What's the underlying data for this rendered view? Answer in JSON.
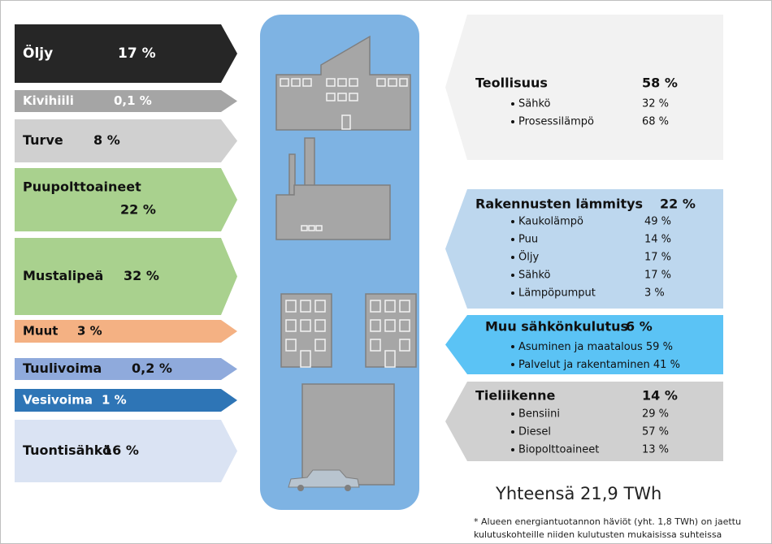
{
  "sources": [
    {
      "label": "Öljy",
      "value": "17 %",
      "color": "#262626"
    },
    {
      "label": "Kivihiili",
      "value": "0,1 %",
      "color": "#a5a5a5"
    },
    {
      "label": "Turve",
      "value": "8 %",
      "color": "#d0d0d0"
    },
    {
      "label": "Puupolttoaineet",
      "value": "22 %",
      "color": "#a9d18e"
    },
    {
      "label": "Mustalipeä",
      "value": "32 %",
      "color": "#a9d18e"
    },
    {
      "label": "Muut",
      "value": "3 %",
      "color": "#f4b183"
    },
    {
      "label": "Tuulivoima",
      "value": "0,2 %",
      "color": "#8faadc"
    },
    {
      "label": "Vesivoima",
      "value": "1 %",
      "color": "#2e75b6"
    },
    {
      "label": "Tuontisähkö",
      "value": "16 %",
      "color": "#dae3f3"
    }
  ],
  "uses": [
    {
      "title": "Teollisuus",
      "value": "58 %",
      "color": "#f2f2f2",
      "items": [
        {
          "label": "Sähkö",
          "value": "32 %"
        },
        {
          "label": "Prosessilämpö",
          "value": "68 %"
        }
      ]
    },
    {
      "title": "Rakennusten lämmitys",
      "value": "22 %",
      "color": "#bdd7ee",
      "items": [
        {
          "label": "Kaukolämpö",
          "value": "49 %"
        },
        {
          "label": "Puu",
          "value": "14 %"
        },
        {
          "label": "Öljy",
          "value": "17 %"
        },
        {
          "label": "Sähkö",
          "value": "17 %"
        },
        {
          "label": "Lämpöpumput",
          "value": "3 %"
        }
      ]
    },
    {
      "title": "Muu sähkönkulutus",
      "value": "6 %",
      "color": "#5bc3f5",
      "items": [
        {
          "label": "Asuminen ja maatalous",
          "value": "59 %"
        },
        {
          "label": "Palvelut ja rakentaminen",
          "value": "41 %"
        }
      ]
    },
    {
      "title": "Tieliikenne",
      "value": "14 %",
      "color": "#d0d0d0",
      "items": [
        {
          "label": "Bensiini",
          "value": "29 %"
        },
        {
          "label": "Diesel",
          "value": "57 %"
        },
        {
          "label": "Biopolttoaineet",
          "value": "13 %"
        }
      ]
    }
  ],
  "total": "Yhteensä 21,9 TWh",
  "footnote": [
    "* Alueen energiantuotannon häviöt  (yht. 1,8 TWh) on jaettu",
    "kulutuskohteille niiden kulutusten mukaisissa suhteissa"
  ]
}
